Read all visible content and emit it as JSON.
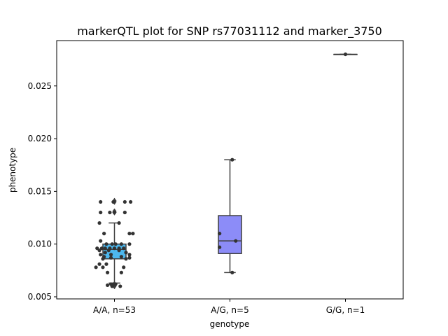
{
  "chart_data": {
    "type": "box",
    "title": "markerQTL plot for SNP rs77031112 and marker_3750",
    "xlabel": "genotype",
    "ylabel": "phenotype",
    "ylim": [
      0.0048,
      0.0293
    ],
    "yticks": [
      0.005,
      0.01,
      0.015,
      0.02,
      0.025
    ],
    "ytick_labels": [
      "0.005",
      "0.010",
      "0.015",
      "0.020",
      "0.025"
    ],
    "grid": false,
    "categories": [
      "A/A, n=53",
      "A/G, n=5",
      "G/G, n=1"
    ],
    "boxes": [
      {
        "category": "A/A, n=53",
        "color": "#4DB8EE",
        "q1": 0.0086,
        "median": 0.0095,
        "q3": 0.01,
        "whisker_low": 0.0063,
        "whisker_high": 0.012,
        "outliers": [
          0.006,
          0.0061,
          0.0062,
          0.013,
          0.0131,
          0.014,
          0.0141
        ]
      },
      {
        "category": "A/G, n=5",
        "color": "#8C8CF8",
        "q1": 0.0091,
        "median": 0.0103,
        "q3": 0.0127,
        "whisker_low": 0.0073,
        "whisker_high": 0.018,
        "outliers": []
      },
      {
        "category": "G/G, n=1",
        "color": "#F060F0",
        "q1": 0.028,
        "median": 0.028,
        "q3": 0.028,
        "whisker_low": 0.028,
        "whisker_high": 0.028,
        "outliers": []
      }
    ],
    "points": [
      [
        {
          "dx": -0.12,
          "y": 0.014
        },
        {
          "dx": 0.09,
          "y": 0.014
        },
        {
          "dx": 0.14,
          "y": 0.014
        },
        {
          "dx": -0.01,
          "y": 0.014
        },
        {
          "dx": -0.12,
          "y": 0.013
        },
        {
          "dx": -0.04,
          "y": 0.013
        },
        {
          "dx": 0.09,
          "y": 0.013
        },
        {
          "dx": 0.0,
          "y": 0.013
        },
        {
          "dx": -0.13,
          "y": 0.012
        },
        {
          "dx": 0.04,
          "y": 0.012
        },
        {
          "dx": -0.09,
          "y": 0.011
        },
        {
          "dx": 0.13,
          "y": 0.011
        },
        {
          "dx": 0.16,
          "y": 0.011
        },
        {
          "dx": -0.12,
          "y": 0.0103
        },
        {
          "dx": -0.07,
          "y": 0.01
        },
        {
          "dx": -0.02,
          "y": 0.01
        },
        {
          "dx": 0.01,
          "y": 0.01
        },
        {
          "dx": 0.06,
          "y": 0.01
        },
        {
          "dx": 0.13,
          "y": 0.01
        },
        {
          "dx": -0.15,
          "y": 0.0096
        },
        {
          "dx": -0.11,
          "y": 0.0096
        },
        {
          "dx": -0.08,
          "y": 0.0096
        },
        {
          "dx": -0.04,
          "y": 0.0096
        },
        {
          "dx": 0.0,
          "y": 0.0096
        },
        {
          "dx": 0.04,
          "y": 0.0096
        },
        {
          "dx": 0.08,
          "y": 0.0096
        },
        {
          "dx": -0.13,
          "y": 0.0094
        },
        {
          "dx": -0.05,
          "y": 0.0094
        },
        {
          "dx": 0.04,
          "y": 0.0094
        },
        {
          "dx": -0.08,
          "y": 0.0092
        },
        {
          "dx": 0.1,
          "y": 0.0092
        },
        {
          "dx": -0.12,
          "y": 0.009
        },
        {
          "dx": -0.03,
          "y": 0.009
        },
        {
          "dx": 0.13,
          "y": 0.009
        },
        {
          "dx": -0.09,
          "y": 0.0088
        },
        {
          "dx": 0.06,
          "y": 0.0088
        },
        {
          "dx": 0.13,
          "y": 0.0087
        },
        {
          "dx": -0.03,
          "y": 0.0087
        },
        {
          "dx": -0.1,
          "y": 0.0086
        },
        {
          "dx": 0.1,
          "y": 0.0086
        },
        {
          "dx": -0.13,
          "y": 0.0081
        },
        {
          "dx": -0.07,
          "y": 0.0081
        },
        {
          "dx": -0.16,
          "y": 0.0078
        },
        {
          "dx": -0.1,
          "y": 0.0078
        },
        {
          "dx": 0.08,
          "y": 0.0078
        },
        {
          "dx": -0.06,
          "y": 0.0073
        },
        {
          "dx": 0.06,
          "y": 0.0073
        },
        {
          "dx": -0.03,
          "y": 0.0062
        },
        {
          "dx": -0.01,
          "y": 0.0062
        },
        {
          "dx": 0.01,
          "y": 0.0062
        },
        {
          "dx": -0.02,
          "y": 0.006
        },
        {
          "dx": 0.05,
          "y": 0.006
        },
        {
          "dx": -0.06,
          "y": 0.0061
        }
      ],
      [
        {
          "dx": 0.02,
          "y": 0.018
        },
        {
          "dx": -0.09,
          "y": 0.011
        },
        {
          "dx": -0.09,
          "y": 0.0097
        },
        {
          "dx": 0.02,
          "y": 0.0073
        },
        {
          "dx": 0.05,
          "y": 0.0103
        }
      ],
      [
        {
          "dx": 0.0,
          "y": 0.028
        }
      ]
    ]
  }
}
